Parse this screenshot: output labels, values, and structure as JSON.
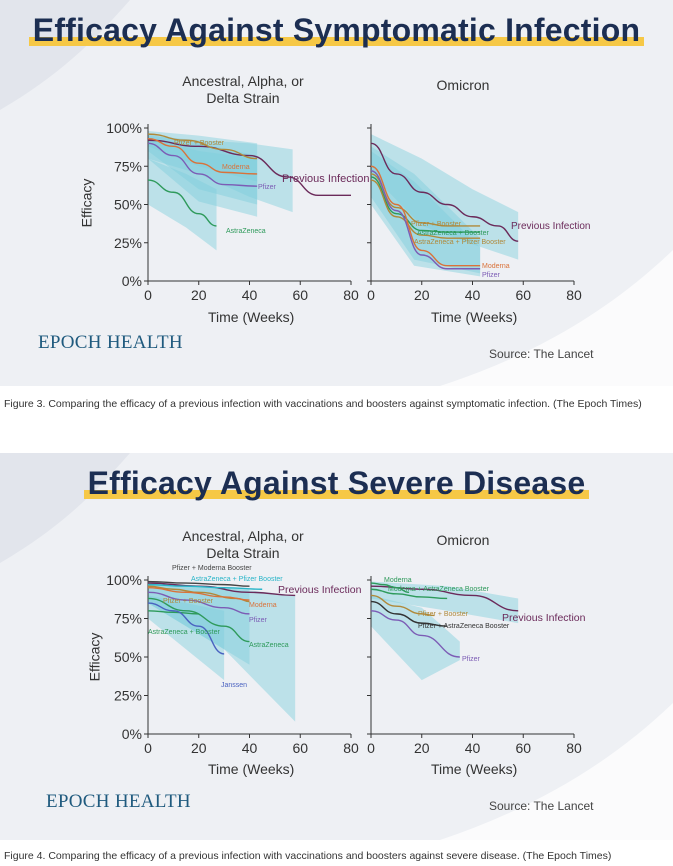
{
  "colors": {
    "background": "#eef0f4",
    "band": "#7fcfdc",
    "title": "#1c2e52",
    "highlight": "#f6c846",
    "brand": "#1f5a7e",
    "previous_infection": "#6b2a5a",
    "pfizer_booster": "#b0893a",
    "moderna": "#d9723a",
    "pfizer": "#7c5cb5",
    "astrazeneca": "#2e9a5b",
    "az_pfizer_booster": "#29b5c8",
    "pfizer_moderna_booster": "#444444",
    "janssen": "#4a62c0",
    "pfizer_az_booster": "#333333"
  },
  "figure1": {
    "title": "Efficacy Against Symptomatic Infection",
    "brand": "EPOCH HEALTH",
    "source": "Source: The Lancet",
    "caption": "Figure 3. Comparing the efficacy of a previous infection with vaccinations and boosters against symptomatic infection. (The Epoch Times)",
    "ylabel": "Efficacy",
    "xlabel": "Time (Weeks)",
    "yticks": [
      "100%",
      "75%",
      "50%",
      "25%",
      "0%"
    ],
    "xticks": [
      "0",
      "20",
      "40",
      "60",
      "80"
    ],
    "panel_left_title": "Ancestral, Alpha, or Delta Strain",
    "panel_right_title": "Omicron"
  },
  "figure2": {
    "title": "Efficacy Against Severe Disease",
    "brand": "EPOCH HEALTH",
    "source": "Source: The Lancet",
    "caption": "Figure 4. Comparing the efficacy of a previous infection with vaccinations and boosters against severe disease. (The Epoch Times)",
    "ylabel": "Efficacy",
    "xlabel": "Time (Weeks)",
    "yticks": [
      "100%",
      "75%",
      "50%",
      "25%",
      "0%"
    ],
    "xticks": [
      "0",
      "20",
      "40",
      "60",
      "80"
    ],
    "panel_left_title": "Ancestral, Alpha, or Delta Strain",
    "panel_right_title": "Omicron"
  },
  "chart_data": [
    {
      "type": "line",
      "title": "Efficacy Against Symptomatic Infection",
      "subtitle": "Ancestral, Alpha, or Delta Strain",
      "xlabel": "Time (Weeks)",
      "ylabel": "Efficacy",
      "xlim": [
        0,
        80
      ],
      "ylim": [
        0,
        100
      ],
      "series": [
        {
          "name": "Previous Infection",
          "color": "#6b2a5a",
          "x": [
            0,
            20,
            40,
            55,
            67,
            80
          ],
          "y": [
            92,
            88,
            82,
            68,
            56,
            56
          ],
          "band": [
            [
              0,
              95,
              80
            ],
            [
              20,
              92,
              70
            ],
            [
              40,
              90,
              55
            ],
            [
              57,
              86,
              45
            ]
          ]
        },
        {
          "name": "Pfizer + Booster",
          "color": "#b0893a",
          "x": [
            0,
            15,
            30,
            43
          ],
          "y": [
            96,
            92,
            86,
            80
          ],
          "band": [
            [
              0,
              98,
              88
            ],
            [
              20,
              95,
              75
            ],
            [
              43,
              90,
              65
            ]
          ]
        },
        {
          "name": "Moderna",
          "color": "#d9723a",
          "x": [
            0,
            10,
            20,
            30,
            43
          ],
          "y": [
            93,
            88,
            77,
            71,
            70
          ],
          "band": [
            [
              0,
              96,
              85
            ],
            [
              20,
              90,
              60
            ],
            [
              43,
              82,
              50
            ]
          ]
        },
        {
          "name": "Pfizer",
          "color": "#7c5cb5",
          "x": [
            0,
            10,
            20,
            30,
            43
          ],
          "y": [
            90,
            82,
            70,
            63,
            62
          ],
          "band": [
            [
              0,
              94,
              80
            ],
            [
              20,
              85,
              52
            ],
            [
              43,
              80,
              42
            ]
          ]
        },
        {
          "name": "AstraZeneca",
          "color": "#2e9a5b",
          "x": [
            0,
            10,
            20,
            27
          ],
          "y": [
            66,
            58,
            44,
            36
          ],
          "band": [
            [
              0,
              80,
              50
            ],
            [
              15,
              70,
              35
            ],
            [
              27,
              60,
              20
            ]
          ]
        }
      ]
    },
    {
      "type": "line",
      "title": "Efficacy Against Symptomatic Infection",
      "subtitle": "Omicron",
      "xlabel": "Time (Weeks)",
      "ylabel": "Efficacy",
      "xlim": [
        0,
        80
      ],
      "ylim": [
        0,
        100
      ],
      "series": [
        {
          "name": "Previous Infection",
          "color": "#6b2a5a",
          "x": [
            0,
            10,
            20,
            30,
            40,
            50,
            58
          ],
          "y": [
            90,
            70,
            58,
            50,
            42,
            36,
            26
          ],
          "band": [
            [
              0,
              96,
              70
            ],
            [
              20,
              80,
              36
            ],
            [
              40,
              60,
              24
            ],
            [
              58,
              45,
              14
            ]
          ]
        },
        {
          "name": "Pfizer + Booster",
          "color": "#b0893a",
          "x": [
            0,
            10,
            20,
            30,
            40,
            43
          ],
          "y": [
            70,
            48,
            38,
            36,
            36,
            36
          ]
        },
        {
          "name": "AstraZeneca + Booster",
          "color": "#2e9a5b",
          "x": [
            0,
            10,
            20,
            30,
            43
          ],
          "y": [
            68,
            44,
            33,
            32,
            32
          ]
        },
        {
          "name": "AstraZeneca + Pfizer Booster",
          "color": "#b0893a",
          "x": [
            0,
            10,
            20,
            30,
            43
          ],
          "y": [
            66,
            42,
            30,
            28,
            28
          ]
        },
        {
          "name": "Moderna",
          "color": "#d9723a",
          "x": [
            0,
            10,
            20,
            30,
            43
          ],
          "y": [
            75,
            50,
            20,
            10,
            10
          ],
          "band": [
            [
              0,
              88,
              55
            ],
            [
              17,
              70,
              14
            ],
            [
              43,
              28,
              5
            ]
          ]
        },
        {
          "name": "Pfizer",
          "color": "#7c5cb5",
          "x": [
            0,
            10,
            20,
            30,
            43
          ],
          "y": [
            72,
            46,
            17,
            8,
            8
          ],
          "band": [
            [
              0,
              85,
              50
            ],
            [
              17,
              65,
              10
            ],
            [
              43,
              22,
              3
            ]
          ]
        }
      ]
    },
    {
      "type": "line",
      "title": "Efficacy Against Severe Disease",
      "subtitle": "Ancestral, Alpha, or Delta Strain",
      "xlabel": "Time (Weeks)",
      "ylabel": "Efficacy",
      "xlim": [
        0,
        80
      ],
      "ylim": [
        0,
        100
      ],
      "series": [
        {
          "name": "Previous Infection",
          "color": "#6b2a5a",
          "x": [
            0,
            20,
            40,
            58
          ],
          "y": [
            98,
            96,
            92,
            90
          ],
          "band": [
            [
              0,
              99,
              85
            ],
            [
              30,
              95,
              55
            ],
            [
              58,
              90,
              8
            ]
          ]
        },
        {
          "name": "Pfizer + Moderna Booster",
          "color": "#444444",
          "x": [
            0,
            15,
            30,
            40
          ],
          "y": [
            99,
            98,
            97,
            96
          ]
        },
        {
          "name": "AstraZeneca + Pfizer Booster",
          "color": "#29b5c8",
          "x": [
            0,
            15,
            30,
            45
          ],
          "y": [
            97,
            96,
            95,
            94
          ]
        },
        {
          "name": "Pfizer + Booster",
          "color": "#b0893a",
          "x": [
            0,
            10,
            20,
            35,
            40
          ],
          "y": [
            96,
            94,
            92,
            88,
            86
          ]
        },
        {
          "name": "Moderna",
          "color": "#d9723a",
          "x": [
            0,
            15,
            30,
            40
          ],
          "y": [
            95,
            92,
            89,
            87
          ],
          "band": [
            [
              0,
              98,
              85
            ],
            [
              40,
              94,
              45
            ]
          ]
        },
        {
          "name": "Pfizer",
          "color": "#7c5cb5",
          "x": [
            0,
            15,
            30,
            40
          ],
          "y": [
            92,
            87,
            82,
            78
          ]
        },
        {
          "name": "AstraZeneca + Booster",
          "color": "#2e9a5b",
          "x": [
            0,
            10,
            20
          ],
          "y": [
            80,
            79,
            78
          ]
        },
        {
          "name": "AstraZeneca",
          "color": "#2e9a5b",
          "x": [
            0,
            15,
            30,
            40
          ],
          "y": [
            88,
            80,
            70,
            60
          ]
        },
        {
          "name": "Janssen",
          "color": "#4a62c0",
          "x": [
            0,
            10,
            20,
            30
          ],
          "y": [
            85,
            80,
            70,
            52
          ],
          "band": [
            [
              0,
              90,
              75
            ],
            [
              30,
              80,
              35
            ]
          ]
        }
      ]
    },
    {
      "type": "line",
      "title": "Efficacy Against Severe Disease",
      "subtitle": "Omicron",
      "xlabel": "Time (Weeks)",
      "ylabel": "Efficacy",
      "xlim": [
        0,
        80
      ],
      "ylim": [
        0,
        100
      ],
      "series": [
        {
          "name": "Previous Infection",
          "color": "#6b2a5a",
          "x": [
            0,
            20,
            40,
            58
          ],
          "y": [
            96,
            94,
            90,
            80
          ],
          "band": [
            [
              0,
              99,
              88
            ],
            [
              30,
              96,
              80
            ],
            [
              58,
              88,
              72
            ]
          ]
        },
        {
          "name": "Moderna",
          "color": "#2e9a5b",
          "x": [
            0,
            5,
            10,
            15
          ],
          "y": [
            98,
            97,
            95,
            92
          ]
        },
        {
          "name": "Moderna + AstraZeneca Booster",
          "color": "#2e9a5b",
          "x": [
            0,
            10,
            20,
            30
          ],
          "y": [
            94,
            91,
            89,
            88
          ]
        },
        {
          "name": "Pfizer + Booster",
          "color": "#b0893a",
          "x": [
            0,
            10,
            20,
            25
          ],
          "y": [
            90,
            83,
            78,
            77
          ]
        },
        {
          "name": "Pfizer + AstraZeneca Booster",
          "color": "#333333",
          "x": [
            0,
            10,
            20,
            30
          ],
          "y": [
            86,
            78,
            72,
            70
          ]
        },
        {
          "name": "Pfizer",
          "color": "#7c5cb5",
          "x": [
            0,
            10,
            20,
            35
          ],
          "y": [
            80,
            74,
            64,
            50
          ],
          "band": [
            [
              0,
              90,
              70
            ],
            [
              20,
              82,
              35
            ],
            [
              35,
              60,
              48
            ]
          ]
        }
      ]
    }
  ]
}
